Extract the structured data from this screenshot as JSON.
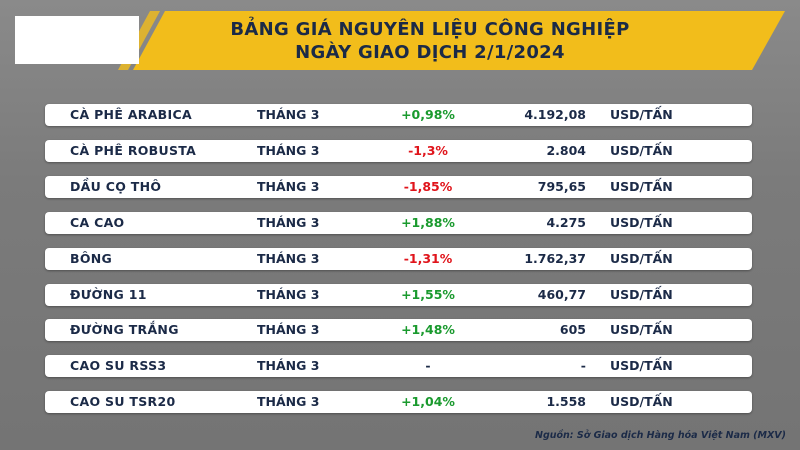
{
  "header": {
    "title": [
      "BẢNG GIÁ NGUYÊN LIỆU CÔNG NGHIỆP",
      "NGÀY GIAO DỊCH 2/1/2024"
    ]
  },
  "table": {
    "rows": [
      [
        "CÀ PHÊ ARABICA",
        "THÁNG 3",
        "+0,98%",
        "4.192,08",
        "USD/TẤN"
      ],
      [
        "CÀ PHÊ ROBUSTA",
        "THÁNG 3",
        "-1,3%",
        "2.804",
        "USD/TẤN"
      ],
      [
        "DẦU CỌ THÔ",
        "THÁNG 3",
        "-1,85%",
        "795,65",
        "USD/TẤN"
      ],
      [
        "CA CAO",
        "THÁNG 3",
        "+1,88%",
        "4.275",
        "USD/TẤN"
      ],
      [
        "BÔNG",
        "THÁNG 3",
        "-1,31%",
        "1.762,37",
        "USD/TẤN"
      ],
      [
        "ĐƯỜNG 11",
        "THÁNG 3",
        "+1,55%",
        "460,77",
        "USD/TẤN"
      ],
      [
        "ĐƯỜNG TRẮNG",
        "THÁNG 3",
        "+1,48%",
        "605",
        "USD/TẤN"
      ],
      [
        "CAO SU RSS3",
        "THÁNG 3",
        "-",
        "-",
        "USD/TẤN"
      ],
      [
        "CAO SU TSR20",
        "THÁNG 3",
        "+1,04%",
        "1.558",
        "USD/TẤN"
      ]
    ]
  },
  "source": "Nguồn: Sở Giao dịch Hàng hóa Việt Nam (MXV)"
}
